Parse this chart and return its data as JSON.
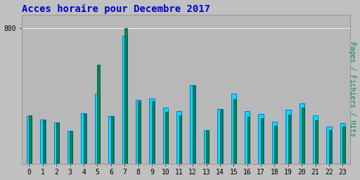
{
  "title": "Acces horaire pour Decembre 2017",
  "ylabel": "Pages / Fichiers / Hits",
  "categories": [
    0,
    1,
    2,
    3,
    4,
    5,
    6,
    7,
    8,
    9,
    10,
    11,
    12,
    13,
    14,
    15,
    16,
    17,
    18,
    19,
    20,
    21,
    22,
    23
  ],
  "hits": [
    280,
    260,
    245,
    195,
    300,
    415,
    280,
    755,
    375,
    385,
    330,
    310,
    465,
    200,
    325,
    415,
    310,
    295,
    250,
    320,
    355,
    285,
    220,
    240
  ],
  "pages": [
    285,
    255,
    240,
    190,
    295,
    585,
    280,
    800,
    370,
    370,
    305,
    285,
    460,
    195,
    320,
    380,
    278,
    268,
    222,
    288,
    330,
    258,
    198,
    218
  ],
  "bar_color_hits": "#00ddff",
  "bar_color_pages": "#008855",
  "bar_edge_hits": "#0044cc",
  "bar_edge_pages": "#004433",
  "bg_color": "#c0c0c0",
  "plot_bg_color": "#b8b8b8",
  "title_color": "#0000cc",
  "ylabel_color": "#008855",
  "ylim": [
    0,
    880
  ],
  "ytick_val": 800,
  "title_fontsize": 10,
  "tick_fontsize": 7,
  "ylabel_fontsize": 7
}
